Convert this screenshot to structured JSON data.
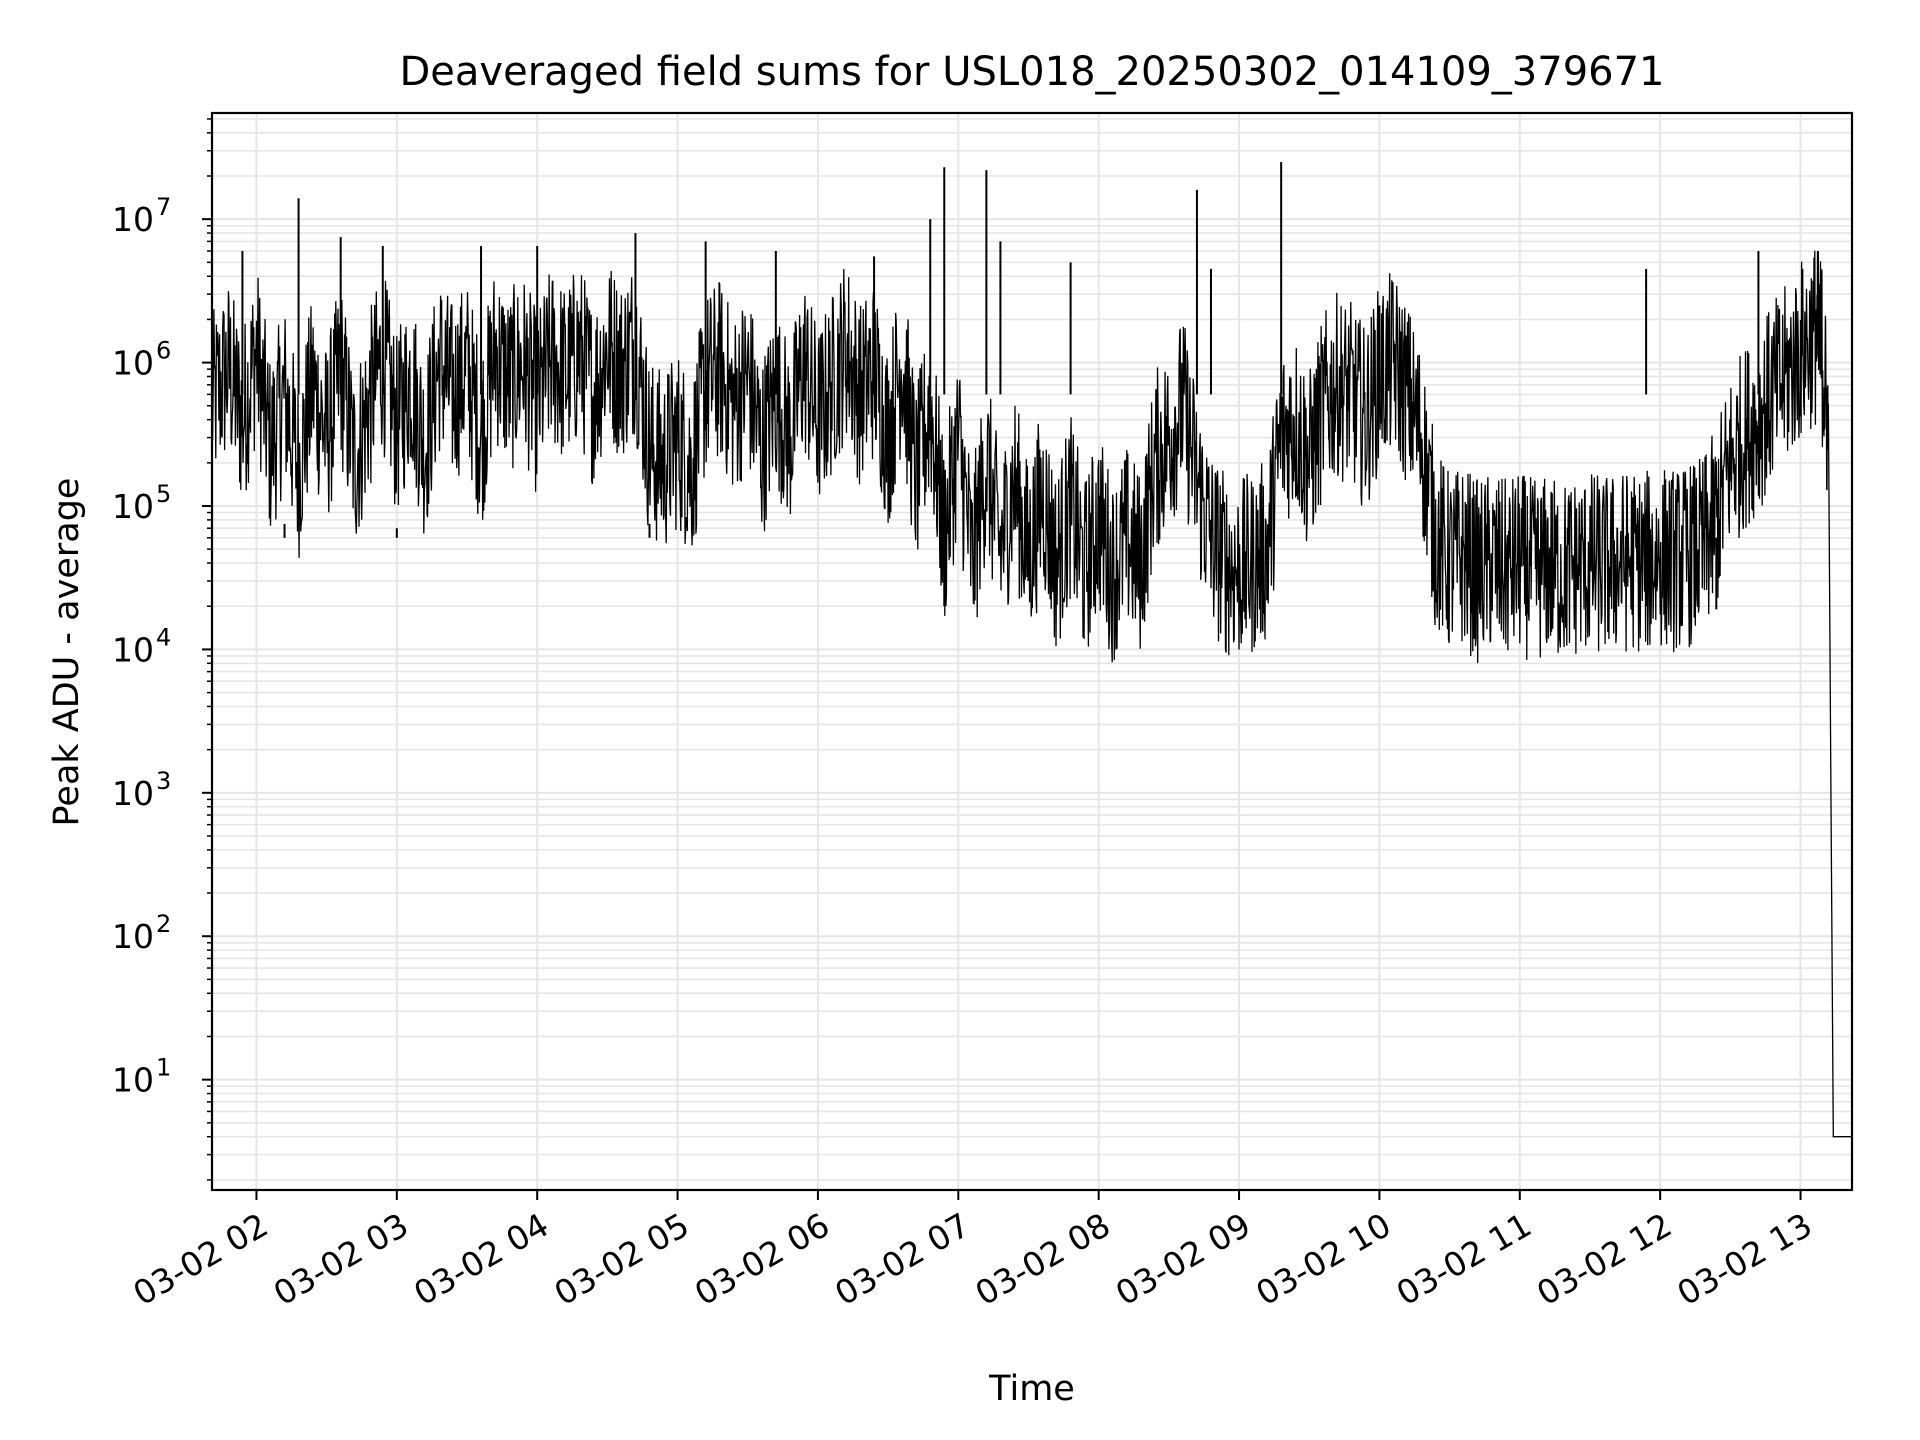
{
  "chart_data": {
    "type": "line",
    "title": "Deaveraged field sums for USL018_20250302_014109_379671",
    "xlabel": "Time",
    "ylabel": "Peak ADU - average",
    "yscale": "log",
    "grid": true,
    "series_color": "#000000",
    "grid_color": "#e6e6e6",
    "xlim": [
      "2025-03-02 01:41",
      "2025-03-02 13:22"
    ],
    "ylim": [
      1.7,
      55000000
    ],
    "x_ticks": [
      {
        "label": "03-02 02",
        "t": "2025-03-02 02:00"
      },
      {
        "label": "03-02 03",
        "t": "2025-03-02 03:00"
      },
      {
        "label": "03-02 04",
        "t": "2025-03-02 04:00"
      },
      {
        "label": "03-02 05",
        "t": "2025-03-02 05:00"
      },
      {
        "label": "03-02 06",
        "t": "2025-03-02 06:00"
      },
      {
        "label": "03-02 07",
        "t": "2025-03-02 07:00"
      },
      {
        "label": "03-02 08",
        "t": "2025-03-02 08:00"
      },
      {
        "label": "03-02 09",
        "t": "2025-03-02 09:00"
      },
      {
        "label": "03-02 10",
        "t": "2025-03-02 10:00"
      },
      {
        "label": "03-02 11",
        "t": "2025-03-02 11:00"
      },
      {
        "label": "03-02 12",
        "t": "2025-03-02 12:00"
      },
      {
        "label": "03-02 13",
        "t": "2025-03-02 13:00"
      }
    ],
    "y_ticks": [
      {
        "base": "10",
        "exp": "1",
        "value": 10
      },
      {
        "base": "10",
        "exp": "2",
        "value": 100
      },
      {
        "base": "10",
        "exp": "3",
        "value": 1000
      },
      {
        "base": "10",
        "exp": "4",
        "value": 10000
      },
      {
        "base": "10",
        "exp": "5",
        "value": 100000
      },
      {
        "base": "10",
        "exp": "6",
        "value": 1000000
      },
      {
        "base": "10",
        "exp": "7",
        "value": 10000000
      }
    ],
    "series": [
      {
        "points": [
          [
            "2025-03-02 01:41",
            500000
          ],
          [
            "2025-03-02 01:48",
            900000
          ],
          [
            "2025-03-02 01:54",
            400000
          ],
          [
            "2025-03-02 02:00",
            1200000
          ],
          [
            "2025-03-02 02:06",
            250000
          ],
          [
            "2025-03-02 02:12",
            600000
          ],
          [
            "2025-03-02 02:18",
            180000
          ],
          [
            "2025-03-02 02:24",
            700000
          ],
          [
            "2025-03-02 02:30",
            300000
          ],
          [
            "2025-03-02 02:36",
            900000
          ],
          [
            "2025-03-02 02:42",
            200000
          ],
          [
            "2025-03-02 02:48",
            500000
          ],
          [
            "2025-03-02 02:54",
            1100000
          ],
          [
            "2025-03-02 03:00",
            350000
          ],
          [
            "2025-03-02 03:06",
            800000
          ],
          [
            "2025-03-02 03:12",
            250000
          ],
          [
            "2025-03-02 03:18",
            1000000
          ],
          [
            "2025-03-02 03:24",
            600000
          ],
          [
            "2025-03-02 03:30",
            900000
          ],
          [
            "2025-03-02 03:36",
            300000
          ],
          [
            "2025-03-02 03:42",
            1200000
          ],
          [
            "2025-03-02 03:48",
            700000
          ],
          [
            "2025-03-02 03:54",
            1000000
          ],
          [
            "2025-03-02 04:00",
            500000
          ],
          [
            "2025-03-02 04:06",
            1100000
          ],
          [
            "2025-03-02 04:12",
            800000
          ],
          [
            "2025-03-02 04:18",
            1200000
          ],
          [
            "2025-03-02 04:24",
            600000
          ],
          [
            "2025-03-02 04:30",
            1300000
          ],
          [
            "2025-03-02 04:36",
            900000
          ],
          [
            "2025-03-02 04:42",
            1400000
          ],
          [
            "2025-03-02 04:48",
            250000
          ],
          [
            "2025-03-02 04:54",
            200000
          ],
          [
            "2025-03-02 05:00",
            300000
          ],
          [
            "2025-03-02 05:06",
            180000
          ],
          [
            "2025-03-02 05:12",
            700000
          ],
          [
            "2025-03-02 05:18",
            900000
          ],
          [
            "2025-03-02 05:24",
            500000
          ],
          [
            "2025-03-02 05:30",
            800000
          ],
          [
            "2025-03-02 05:36",
            250000
          ],
          [
            "2025-03-02 05:42",
            600000
          ],
          [
            "2025-03-02 05:48",
            300000
          ],
          [
            "2025-03-02 05:54",
            1000000
          ],
          [
            "2025-03-02 06:00",
            400000
          ],
          [
            "2025-03-02 06:06",
            700000
          ],
          [
            "2025-03-02 06:12",
            1300000
          ],
          [
            "2025-03-02 06:18",
            600000
          ],
          [
            "2025-03-02 06:24",
            900000
          ],
          [
            "2025-03-02 06:30",
            300000
          ],
          [
            "2025-03-02 06:36",
            1100000
          ],
          [
            "2025-03-02 06:42",
            150000
          ],
          [
            "2025-03-02 06:48",
            500000
          ],
          [
            "2025-03-02 06:54",
            60000
          ],
          [
            "2025-03-02 07:00",
            300000
          ],
          [
            "2025-03-02 07:06",
            40000
          ],
          [
            "2025-03-02 07:12",
            200000
          ],
          [
            "2025-03-02 07:18",
            50000
          ],
          [
            "2025-03-02 07:24",
            150000
          ],
          [
            "2025-03-02 07:30",
            45000
          ],
          [
            "2025-03-02 07:36",
            120000
          ],
          [
            "2025-03-02 07:42",
            40000
          ],
          [
            "2025-03-02 07:48",
            100000
          ],
          [
            "2025-03-02 07:54",
            35000
          ],
          [
            "2025-03-02 08:00",
            80000
          ],
          [
            "2025-03-02 08:06",
            35000
          ],
          [
            "2025-03-02 08:12",
            60000
          ],
          [
            "2025-03-02 08:18",
            40000
          ],
          [
            "2025-03-02 08:24",
            200000
          ],
          [
            "2025-03-02 08:30",
            300000
          ],
          [
            "2025-03-02 08:36",
            500000
          ],
          [
            "2025-03-02 08:42",
            150000
          ],
          [
            "2025-03-02 08:48",
            60000
          ],
          [
            "2025-03-02 08:54",
            40000
          ],
          [
            "2025-03-02 09:00",
            35000
          ],
          [
            "2025-03-02 09:06",
            40000
          ],
          [
            "2025-03-02 09:12",
            50000
          ],
          [
            "2025-03-02 09:18",
            300000
          ],
          [
            "2025-03-02 09:24",
            400000
          ],
          [
            "2025-03-02 09:30",
            200000
          ],
          [
            "2025-03-02 09:36",
            500000
          ],
          [
            "2025-03-02 09:42",
            700000
          ],
          [
            "2025-03-02 09:48",
            600000
          ],
          [
            "2025-03-02 09:54",
            400000
          ],
          [
            "2025-03-02 10:00",
            800000
          ],
          [
            "2025-03-02 10:06",
            1000000
          ],
          [
            "2025-03-02 10:12",
            600000
          ],
          [
            "2025-03-02 10:18",
            300000
          ],
          [
            "2025-03-02 10:24",
            60000
          ],
          [
            "2025-03-02 10:30",
            40000
          ],
          [
            "2025-03-02 10:36",
            45000
          ],
          [
            "2025-03-02 10:42",
            35000
          ],
          [
            "2025-03-02 10:48",
            40000
          ],
          [
            "2025-03-02 10:54",
            35000
          ],
          [
            "2025-03-02 11:00",
            40000
          ],
          [
            "2025-03-02 11:06",
            35000
          ],
          [
            "2025-03-02 11:12",
            38000
          ],
          [
            "2025-03-02 11:18",
            35000
          ],
          [
            "2025-03-02 11:24",
            38000
          ],
          [
            "2025-03-02 11:30",
            40000
          ],
          [
            "2025-03-02 11:36",
            38000
          ],
          [
            "2025-03-02 11:42",
            40000
          ],
          [
            "2025-03-02 11:48",
            42000
          ],
          [
            "2025-03-02 11:54",
            40000
          ],
          [
            "2025-03-02 12:00",
            45000
          ],
          [
            "2025-03-02 12:06",
            42000
          ],
          [
            "2025-03-02 12:12",
            45000
          ],
          [
            "2025-03-02 12:18",
            50000
          ],
          [
            "2025-03-02 12:24",
            80000
          ],
          [
            "2025-03-02 12:30",
            200000
          ],
          [
            "2025-03-02 12:36",
            300000
          ],
          [
            "2025-03-02 12:42",
            400000
          ],
          [
            "2025-03-02 12:48",
            600000
          ],
          [
            "2025-03-02 12:54",
            800000
          ],
          [
            "2025-03-02 13:00",
            1200000
          ],
          [
            "2025-03-02 13:06",
            1600000
          ],
          [
            "2025-03-02 13:09",
            1300000
          ],
          [
            "2025-03-02 13:12",
            300000
          ],
          [
            "2025-03-02 13:14",
            4
          ],
          [
            "2025-03-02 13:22",
            4
          ]
        ],
        "spikes": [
          [
            "2025-03-02 01:54",
            6000000
          ],
          [
            "2025-03-02 02:18",
            14000000
          ],
          [
            "2025-03-02 02:36",
            7500000
          ],
          [
            "2025-03-02 02:54",
            6500000
          ],
          [
            "2025-03-02 03:36",
            6500000
          ],
          [
            "2025-03-02 04:00",
            6500000
          ],
          [
            "2025-03-02 04:42",
            8000000
          ],
          [
            "2025-03-02 05:12",
            7000000
          ],
          [
            "2025-03-02 05:42",
            6000000
          ],
          [
            "2025-03-02 06:24",
            5500000
          ],
          [
            "2025-03-02 06:48",
            10000000
          ],
          [
            "2025-03-02 06:54",
            23000000
          ],
          [
            "2025-03-02 07:12",
            22000000
          ],
          [
            "2025-03-02 07:18",
            7000000
          ],
          [
            "2025-03-02 07:48",
            5000000
          ],
          [
            "2025-03-02 08:42",
            16000000
          ],
          [
            "2025-03-02 08:48",
            4500000
          ],
          [
            "2025-03-02 09:18",
            25000000
          ],
          [
            "2025-03-02 10:00",
            2500000
          ],
          [
            "2025-03-02 11:54",
            4500000
          ],
          [
            "2025-03-02 12:42",
            6000000
          ]
        ],
        "dips": [
          [
            "2025-03-02 02:12",
            75000
          ],
          [
            "2025-03-02 03:00",
            70000
          ],
          [
            "2025-03-02 04:48",
            75000
          ],
          [
            "2025-03-02 06:54",
            20000
          ],
          [
            "2025-03-02 08:18",
            19000
          ],
          [
            "2025-03-02 09:12",
            22000
          ],
          [
            "2025-03-02 11:54",
            20000
          ],
          [
            "2025-03-02 12:24",
            19000
          ]
        ]
      }
    ]
  }
}
